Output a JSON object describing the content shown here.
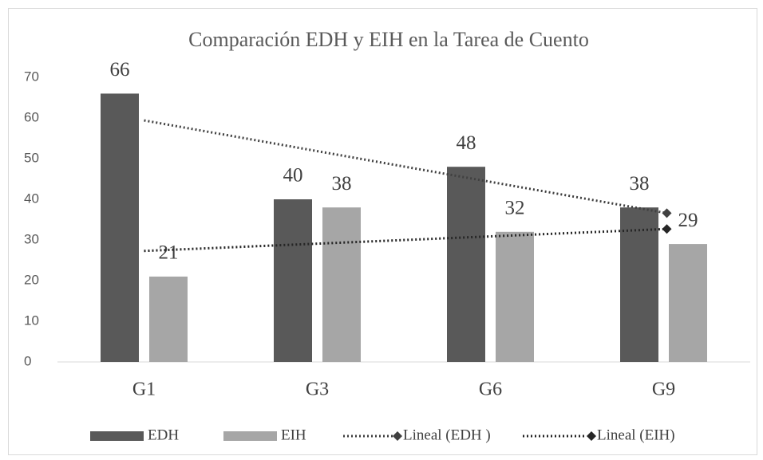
{
  "chart_data": {
    "type": "bar",
    "title": "Comparación EDH y EIH en la Tarea de Cuento",
    "categories": [
      "G1",
      "G3",
      "G6",
      "G9"
    ],
    "series": [
      {
        "name": "EDH",
        "color": "#595959",
        "values": [
          66,
          40,
          48,
          38
        ]
      },
      {
        "name": "EIH",
        "color": "#a6a6a6",
        "values": [
          21,
          38,
          32,
          29
        ]
      }
    ],
    "trendlines": [
      {
        "name": "Lineal (EDH )",
        "color": "#404040"
      },
      {
        "name": "Lineal (EIH)",
        "color": "#262626"
      }
    ],
    "ylim": [
      0,
      70
    ],
    "yticks": [
      0,
      10,
      20,
      30,
      40,
      50,
      60,
      70
    ],
    "grid": false
  }
}
